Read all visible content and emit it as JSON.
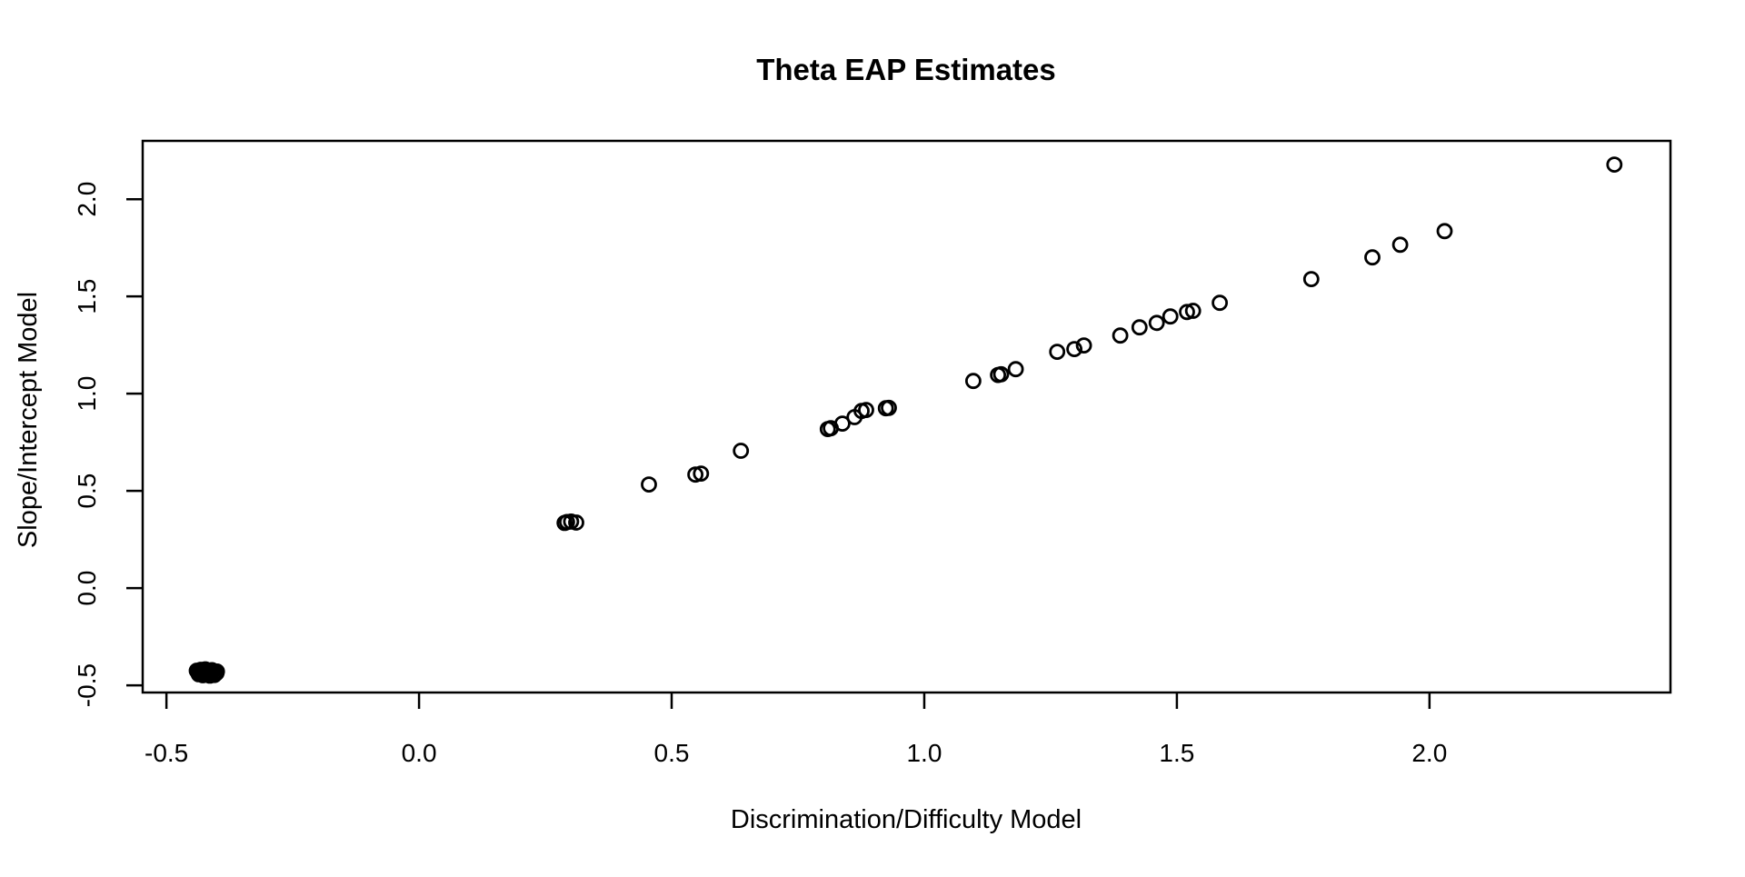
{
  "page": {
    "background": "#ffffff",
    "foreground": "#000000"
  },
  "chart_data": {
    "type": "scatter",
    "title": "Theta EAP Estimates",
    "xlabel": "Discrimination/Difficulty Model",
    "ylabel": "Slope/Intercept Model",
    "marker": "open-circle",
    "marker_color": "#000000",
    "grid": false,
    "legend": null,
    "xlim": [
      -0.547,
      2.477
    ],
    "ylim": [
      -0.537,
      2.3
    ],
    "xticks": {
      "values": [
        -0.5,
        0.0,
        0.5,
        1.0,
        1.5,
        2.0
      ],
      "labels": [
        "-0.5",
        "0.0",
        "0.5",
        "1.0",
        "1.5",
        "2.0"
      ]
    },
    "yticks": {
      "values": [
        -0.5,
        0.0,
        0.5,
        1.0,
        1.5,
        2.0
      ],
      "labels": [
        "-0.5",
        "0.0",
        "0.5",
        "1.0",
        "1.5",
        "2.0"
      ]
    },
    "points": [
      [
        -0.438,
        -0.432
      ],
      [
        -0.434,
        -0.428
      ],
      [
        -0.43,
        -0.436
      ],
      [
        -0.427,
        -0.425
      ],
      [
        -0.424,
        -0.44
      ],
      [
        -0.421,
        -0.43
      ],
      [
        -0.418,
        -0.445
      ],
      [
        -0.415,
        -0.427
      ],
      [
        -0.412,
        -0.438
      ],
      [
        -0.409,
        -0.431
      ],
      [
        -0.406,
        -0.442
      ],
      [
        -0.403,
        -0.434
      ],
      [
        -0.4,
        -0.429
      ],
      [
        -0.436,
        -0.443
      ],
      [
        -0.432,
        -0.42
      ],
      [
        -0.428,
        -0.448
      ],
      [
        -0.423,
        -0.418
      ],
      [
        -0.419,
        -0.436
      ],
      [
        -0.414,
        -0.45
      ],
      [
        -0.41,
        -0.422
      ],
      [
        -0.405,
        -0.447
      ],
      [
        -0.401,
        -0.437
      ],
      [
        -0.44,
        -0.425
      ],
      [
        -0.417,
        -0.424
      ],
      [
        -0.426,
        -0.433
      ],
      [
        -0.408,
        -0.427
      ],
      [
        0.288,
        0.335
      ],
      [
        0.293,
        0.34
      ],
      [
        0.301,
        0.342
      ],
      [
        0.311,
        0.337
      ],
      [
        0.455,
        0.533
      ],
      [
        0.547,
        0.584
      ],
      [
        0.558,
        0.589
      ],
      [
        0.637,
        0.706
      ],
      [
        0.809,
        0.818
      ],
      [
        0.815,
        0.822
      ],
      [
        0.838,
        0.846
      ],
      [
        0.862,
        0.879
      ],
      [
        0.876,
        0.911
      ],
      [
        0.885,
        0.916
      ],
      [
        0.924,
        0.925
      ],
      [
        0.93,
        0.927
      ],
      [
        1.097,
        1.065
      ],
      [
        1.146,
        1.096
      ],
      [
        1.152,
        1.1
      ],
      [
        1.181,
        1.126
      ],
      [
        1.263,
        1.215
      ],
      [
        1.297,
        1.229
      ],
      [
        1.316,
        1.248
      ],
      [
        1.388,
        1.299
      ],
      [
        1.426,
        1.341
      ],
      [
        1.46,
        1.364
      ],
      [
        1.487,
        1.397
      ],
      [
        1.52,
        1.42
      ],
      [
        1.532,
        1.426
      ],
      [
        1.585,
        1.467
      ],
      [
        1.766,
        1.589
      ],
      [
        1.887,
        1.701
      ],
      [
        1.942,
        1.766
      ],
      [
        2.03,
        1.836
      ],
      [
        2.366,
        2.178
      ]
    ]
  }
}
